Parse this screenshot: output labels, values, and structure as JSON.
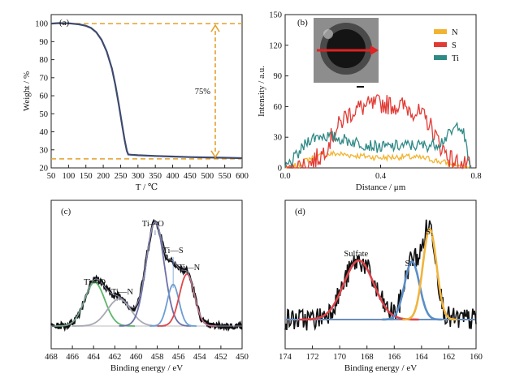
{
  "chart_data": [
    {
      "panel": "(a)",
      "type": "line",
      "xlabel": "T / ℃",
      "ylabel": "Weight / %",
      "xlim": [
        50,
        600
      ],
      "ylim": [
        20,
        105
      ],
      "xticks": [
        50,
        100,
        150,
        200,
        250,
        300,
        350,
        400,
        450,
        500,
        550,
        600
      ],
      "yticks": [
        20,
        30,
        40,
        50,
        60,
        70,
        80,
        90,
        100
      ],
      "series": [
        {
          "color": "#3d4a6e",
          "x": [
            50,
            70,
            100,
            130,
            150,
            165,
            180,
            195,
            210,
            225,
            235,
            245,
            255,
            262,
            268,
            272,
            280,
            300,
            350,
            400,
            450,
            500,
            550,
            600
          ],
          "y": [
            100,
            100.3,
            100.2,
            99.6,
            98.8,
            97.6,
            95.2,
            91.0,
            84.5,
            75.0,
            66.0,
            55.0,
            43.0,
            35.0,
            29.5,
            27.4,
            27.3,
            27.0,
            26.6,
            26.3,
            26.0,
            25.8,
            25.6,
            25.4
          ]
        }
      ],
      "reference_lines": {
        "upper": 100,
        "lower": 25,
        "color": "#e3a12b"
      },
      "annotation": "75%"
    },
    {
      "panel": "(b)",
      "type": "line",
      "xlabel": "Distance / μm",
      "ylabel": "Intensity / a.u.",
      "xlim": [
        0,
        0.8
      ],
      "ylim": [
        0,
        150
      ],
      "xticks": [
        0.0,
        0.4,
        0.8
      ],
      "xtick_labels": [
        "0.0",
        "0.4",
        "0.8"
      ],
      "yticks": [
        0,
        30,
        60,
        90,
        120,
        150
      ],
      "legend": {
        "position": "top-right",
        "entries": [
          {
            "name": "N",
            "color": "#f2b430"
          },
          {
            "name": "S",
            "color": "#e23b36"
          },
          {
            "name": "Ti",
            "color": "#2f8a86"
          }
        ]
      },
      "series": [
        {
          "name": "N",
          "color": "#f2b430",
          "x": [
            0.0,
            0.05,
            0.1,
            0.15,
            0.2,
            0.3,
            0.4,
            0.5,
            0.6,
            0.65,
            0.7,
            0.75,
            0.8
          ],
          "y": [
            0,
            2,
            9,
            12,
            14,
            12,
            10,
            11,
            9,
            6,
            4,
            1,
            0
          ]
        },
        {
          "name": "S",
          "color": "#e23b36",
          "x": [
            0.0,
            0.05,
            0.1,
            0.15,
            0.2,
            0.25,
            0.3,
            0.4,
            0.5,
            0.55,
            0.6,
            0.65,
            0.7,
            0.75,
            0.8
          ],
          "y": [
            0,
            1,
            4,
            12,
            32,
            50,
            58,
            63,
            60,
            55,
            45,
            22,
            7,
            2,
            0
          ]
        },
        {
          "name": "Ti",
          "color": "#2f8a86",
          "x": [
            0.0,
            0.05,
            0.1,
            0.15,
            0.2,
            0.3,
            0.4,
            0.5,
            0.6,
            0.65,
            0.7,
            0.73,
            0.75,
            0.77,
            0.8
          ],
          "y": [
            0,
            12,
            28,
            32,
            30,
            25,
            20,
            22,
            22,
            25,
            35,
            44,
            32,
            5,
            0
          ]
        }
      ]
    },
    {
      "panel": "(c)",
      "type": "line",
      "xlabel": "Binding energy / eV",
      "xlim": [
        468,
        450
      ],
      "xticks": [
        468,
        466,
        464,
        462,
        460,
        458,
        456,
        454,
        452,
        450
      ],
      "peaks": [
        {
          "label": "Ti—O",
          "center": 463.9,
          "height": 0.42,
          "color": "#5cb86a"
        },
        {
          "label": "Ti—N",
          "center": 461.6,
          "height": 0.26,
          "color": "#a7a9b3"
        },
        {
          "label": "Ti—O",
          "center": 458.2,
          "height": 1.0,
          "color": "#6d70a8"
        },
        {
          "label": "Ti—S",
          "center": 456.5,
          "height": 0.4,
          "color": "#6b9ed2"
        },
        {
          "label": "Ti—N",
          "center": 455.2,
          "height": 0.5,
          "color": "#e0474a"
        }
      ]
    },
    {
      "panel": "(d)",
      "type": "line",
      "xlabel": "Binding energy / eV",
      "xlim": [
        174,
        160
      ],
      "xticks": [
        174,
        172,
        170,
        168,
        166,
        164,
        162,
        160
      ],
      "peaks": [
        {
          "label": "Sulfate",
          "center": 168.6,
          "height": 0.56,
          "color": "#d9454a"
        },
        {
          "label": "Sₙ",
          "center": 164.7,
          "height": 0.55,
          "color": "#5b8ec8"
        },
        {
          "label": "S₁",
          "center": 163.4,
          "height": 0.86,
          "color": "#f0b43c"
        }
      ]
    }
  ]
}
